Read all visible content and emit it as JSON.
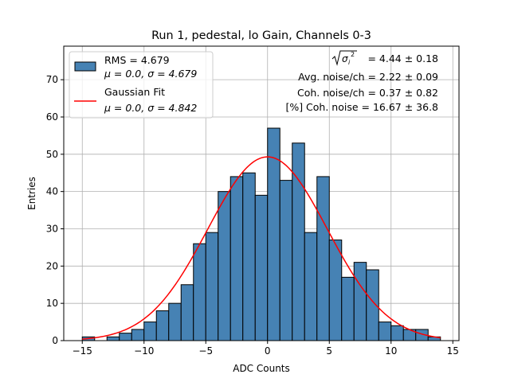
{
  "chart_data": {
    "type": "bar",
    "title": "Run 1, pedestal, lo Gain, Channels 0-3",
    "xlabel": "ADC Counts",
    "ylabel": "Entries",
    "xlim": [
      -16.5,
      15.5
    ],
    "ylim": [
      0,
      79
    ],
    "xticks": [
      -15,
      -10,
      -5,
      0,
      5,
      10,
      15
    ],
    "yticks": [
      0,
      10,
      20,
      30,
      40,
      50,
      60,
      70
    ],
    "xtick_labels": [
      "−15",
      "−10",
      "−5",
      "0",
      "5",
      "10",
      "15"
    ],
    "ytick_labels": [
      "0",
      "10",
      "20",
      "30",
      "40",
      "50",
      "60",
      "70"
    ],
    "grid": true,
    "bin_left_edges": [
      -15,
      -14,
      -13,
      -12,
      -11,
      -10,
      -9,
      -8,
      -7,
      -6,
      -5,
      -4,
      -3,
      -2,
      -1,
      0,
      1,
      2,
      3,
      4,
      5,
      6,
      7,
      8,
      9,
      10,
      11,
      12,
      13
    ],
    "bin_width": 1,
    "counts": [
      1,
      0,
      1,
      2,
      3,
      5,
      8,
      10,
      15,
      26,
      29,
      40,
      44,
      45,
      39,
      57,
      43,
      53,
      29,
      44,
      27,
      17,
      21,
      19,
      5,
      4,
      3,
      3,
      1
    ],
    "bar_color": "#4682b4",
    "edge_color": "#000000",
    "gaussian": {
      "mu": 0.0,
      "sigma": 4.842,
      "amplitude": 49.3,
      "color": "#ff0000",
      "x_range": [
        -15,
        14
      ]
    },
    "legend": {
      "placement": "upper-left",
      "entries": [
        {
          "line1": "RMS = 4.679",
          "line2_mu": "μ = 0.0, ",
          "line2_sigma": "σ = 4.679"
        },
        {
          "line1": "Gaussian Fit",
          "line2_mu": "μ = 0.0, ",
          "line2_sigma": "σ = 4.842"
        }
      ]
    },
    "annotations": {
      "sigma_line_value": " = 4.44 ± 0.18",
      "avg_noise": "Avg. noise/ch = 2.22 ± 0.09",
      "coh_noise": "Coh. noise/ch = 0.37 ± 0.82",
      "pct_coh_noise": "[%] Coh. noise = 16.67 ± 36.8"
    }
  }
}
